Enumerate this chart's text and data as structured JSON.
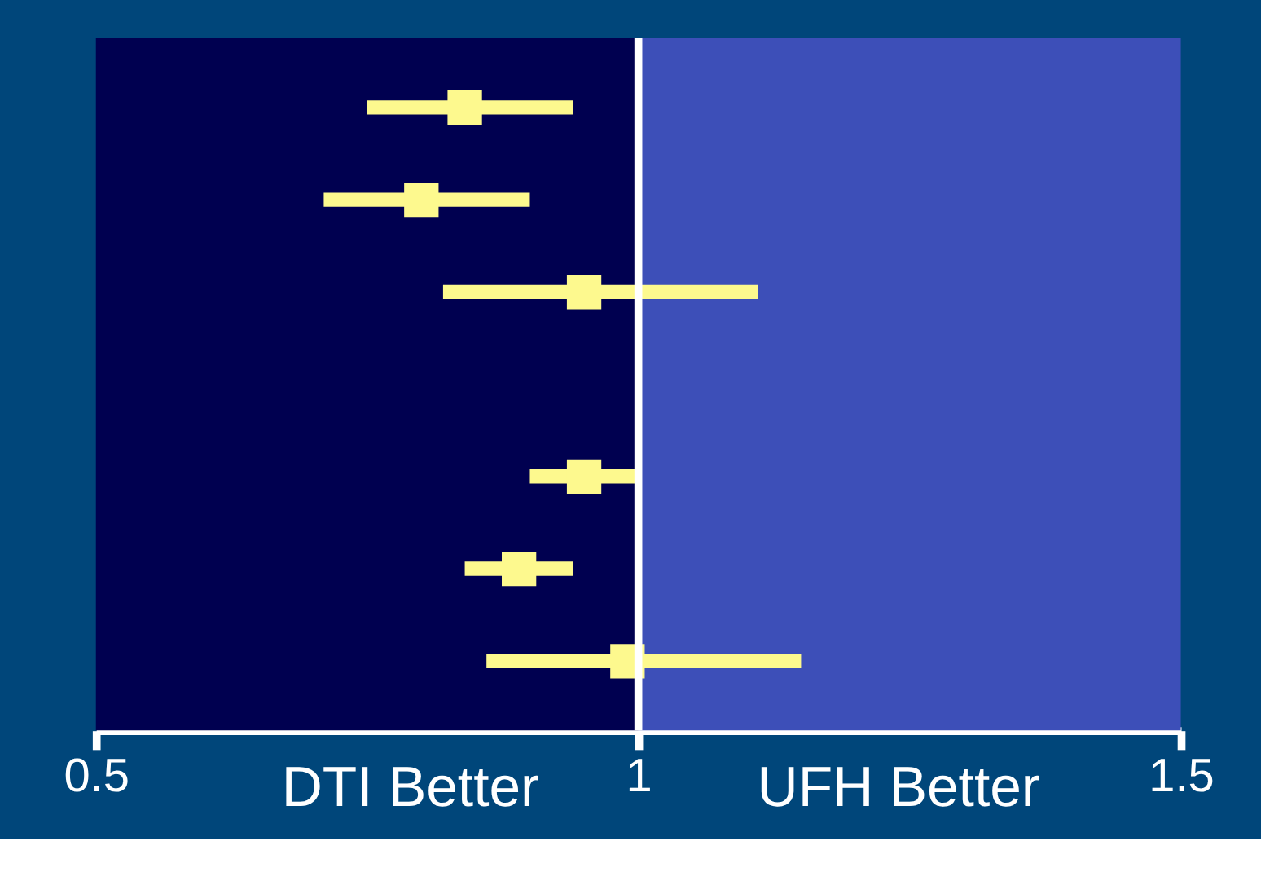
{
  "chart_data": {
    "type": "scatter",
    "orientation": "horizontal",
    "categories": [
      null,
      null,
      null,
      null,
      null,
      null,
      null
    ],
    "series": [
      {
        "color": "#fdf98e",
        "values": [
          0.84,
          0.8,
          0.95,
          null,
          0.95,
          0.89,
          0.99
        ],
        "errors": [
          [
            0.75,
            0.94
          ],
          [
            0.71,
            0.9
          ],
          [
            0.82,
            1.11
          ],
          null,
          [
            0.9,
            1.0
          ],
          [
            0.84,
            0.94
          ],
          [
            0.86,
            1.15
          ]
        ]
      }
    ],
    "marker": "square",
    "xlim": [
      0.5,
      1.5
    ],
    "xticks": [
      0.5,
      1,
      1.5
    ],
    "tick_labels": "x",
    "grid": false,
    "legend": false,
    "ref_lines": [
      {
        "axis": "x",
        "value": 1,
        "color": "#ffffff"
      }
    ],
    "bands": [
      {
        "axis": "x",
        "from": 0.5,
        "to": 1,
        "color": "#000050"
      },
      {
        "axis": "x",
        "from": 1,
        "to": 1.5,
        "color": "#3d4fb8"
      }
    ],
    "annotations": [
      "DTI Better",
      "UFH Better"
    ]
  }
}
